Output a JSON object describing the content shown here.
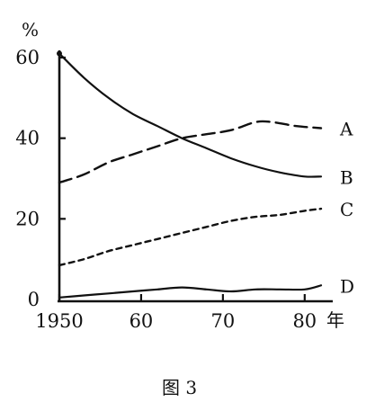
{
  "chart_data": {
    "type": "line",
    "ylabel": "%",
    "xlabel": "年",
    "caption": "图 3",
    "xlim": [
      1950,
      1982
    ],
    "ylim": [
      0,
      60
    ],
    "x_ticks": [
      1950,
      1960,
      1970,
      1980
    ],
    "x_tick_labels": [
      "1950",
      "60",
      "70",
      "80"
    ],
    "y_ticks": [
      0,
      20,
      40,
      60
    ],
    "y_tick_labels": [
      "0",
      "20",
      "40",
      "60"
    ],
    "grid": false,
    "legend": "none",
    "series": [
      {
        "name": "A",
        "style": "long-dash",
        "x": [
          1950,
          1953,
          1956,
          1959,
          1962,
          1965,
          1968,
          1971,
          1974,
          1976,
          1979,
          1982
        ],
        "values": [
          29,
          31,
          34,
          36,
          38,
          40,
          41,
          42,
          44,
          44,
          43,
          42.5
        ]
      },
      {
        "name": "B",
        "style": "solid",
        "x": [
          1950,
          1953,
          1956,
          1959,
          1962,
          1965,
          1968,
          1971,
          1974,
          1977,
          1980,
          1982
        ],
        "values": [
          61,
          55,
          50,
          46,
          43,
          40,
          37.5,
          35,
          33,
          31.5,
          30.5,
          30.5
        ]
      },
      {
        "name": "C",
        "style": "short-dash",
        "x": [
          1950,
          1953,
          1956,
          1959,
          1962,
          1965,
          1968,
          1971,
          1974,
          1977,
          1980,
          1982
        ],
        "values": [
          8.5,
          10,
          12,
          13.5,
          15,
          16.5,
          18,
          19.5,
          20.5,
          21,
          22,
          22.5
        ]
      },
      {
        "name": "D",
        "style": "solid-thin",
        "x": [
          1950,
          1953,
          1956,
          1959,
          1962,
          1965,
          1968,
          1971,
          1974,
          1977,
          1980,
          1982
        ],
        "values": [
          0.5,
          1,
          1.5,
          2,
          2.5,
          3,
          2.5,
          2,
          2.5,
          2.5,
          2.5,
          3.5
        ]
      }
    ]
  }
}
